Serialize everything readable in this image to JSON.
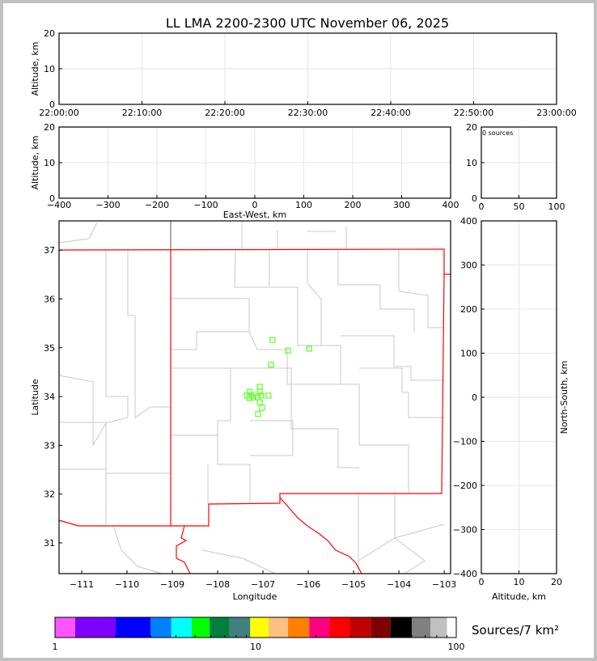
{
  "title": "LL LMA 2200-2300 UTC November 06, 2025",
  "chart_data": [
    {
      "id": "time-altitude",
      "type": "scatter",
      "ylabel": "Altitude, km",
      "xlabel": "",
      "xticks": [
        "22:00:00",
        "22:10:00",
        "22:20:00",
        "22:30:00",
        "22:40:00",
        "22:50:00",
        "23:00:00"
      ],
      "xlim": [
        "22:00:00",
        "23:00:00"
      ],
      "ylim": [
        0,
        20
      ],
      "yticks": [
        0,
        10,
        20
      ],
      "points": []
    },
    {
      "id": "ew-altitude",
      "type": "scatter",
      "xlabel": "East-West, km",
      "ylabel": "Altitude, km",
      "xlim": [
        -400,
        400
      ],
      "xticks": [
        -400,
        -300,
        -200,
        -100,
        0,
        100,
        200,
        300,
        400
      ],
      "ylim": [
        0,
        20
      ],
      "yticks": [
        0,
        10,
        20
      ],
      "points": []
    },
    {
      "id": "altitude-histogram",
      "type": "bar",
      "annotation": "0 sources",
      "xlim": [
        0,
        100
      ],
      "xticks": [
        0,
        50,
        100
      ],
      "ylim": [
        0,
        20
      ],
      "yticks": [
        0,
        10,
        20
      ],
      "values": []
    },
    {
      "id": "plan-view",
      "type": "scatter",
      "xlabel": "Longitude",
      "ylabel": "Latitude",
      "xlim": [
        -111.5,
        -102.86
      ],
      "ylim": [
        30.37,
        37.6
      ],
      "xticks": [
        -111,
        -110,
        -109,
        -108,
        -107,
        -106,
        -105,
        -104,
        -103
      ],
      "yticks": [
        31,
        32,
        33,
        34,
        35,
        36,
        37
      ],
      "marker_color": "#66ff33",
      "points": [
        [
          -106.79,
          35.16
        ],
        [
          -106.45,
          34.94
        ],
        [
          -105.98,
          34.98
        ],
        [
          -106.82,
          34.65
        ],
        [
          -107.07,
          34.2
        ],
        [
          -107.07,
          34.1
        ],
        [
          -107.29,
          34.1
        ],
        [
          -107.36,
          34.02
        ],
        [
          -107.25,
          34.02
        ],
        [
          -107.21,
          33.98
        ],
        [
          -107.3,
          33.97
        ],
        [
          -107.12,
          33.98
        ],
        [
          -107.04,
          34.02
        ],
        [
          -106.88,
          34.02
        ],
        [
          -107.07,
          33.88
        ],
        [
          -107.02,
          33.77
        ],
        [
          -107.11,
          33.64
        ]
      ]
    },
    {
      "id": "ns-altitude",
      "type": "scatter",
      "xlabel": "Altitude, km",
      "ylabel": "North-South, km",
      "xlim": [
        0,
        20
      ],
      "xticks": [
        0,
        10,
        20
      ],
      "ylim": [
        -400,
        400
      ],
      "yticks": [
        -400,
        -300,
        -200,
        -100,
        0,
        100,
        200,
        300,
        400
      ],
      "points": []
    },
    {
      "id": "colorbar",
      "type": "colorbar",
      "label": "Sources/7 km²",
      "scale": "log",
      "range": [
        1,
        100
      ],
      "ticks": [
        "1",
        "10",
        "100"
      ],
      "colors": [
        "#ff55ff",
        "#8000ff",
        "#0000ff",
        "#0080ff",
        "#00ffff",
        "#00ff00",
        "#008040",
        "#408080",
        "#ffff00",
        "#ffc080",
        "#ff8000",
        "#ff0080",
        "#ff0000",
        "#c00000",
        "#800000",
        "#000000",
        "#808080",
        "#c0c0c0",
        "#ffffff"
      ]
    }
  ]
}
